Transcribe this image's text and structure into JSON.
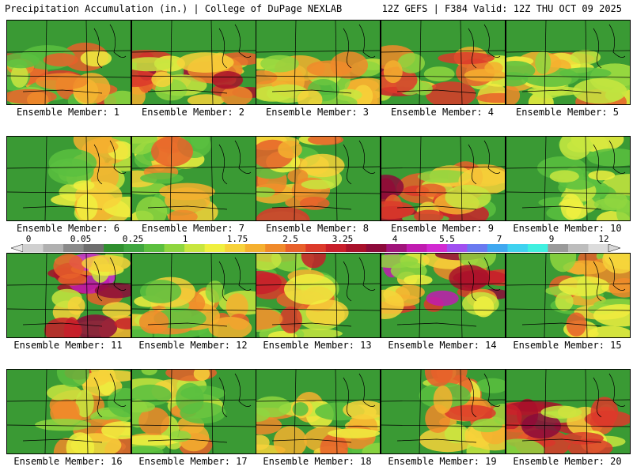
{
  "header": {
    "left_title": "Precipitation Accumulation (in.) | College of DuPage NEXLAB",
    "right_title": "12Z GEFS | F384 Valid: 12Z THU OCT 09 2025"
  },
  "colorbar": {
    "tick_labels": [
      "0",
      "0.05",
      "0.25",
      "1",
      "1.75",
      "2.5",
      "3.25",
      "4",
      "5.5",
      "7",
      "9",
      "12"
    ],
    "colors": [
      "#d0d0d0",
      "#b0b0b0",
      "#8a8a8a",
      "#6e6e6e",
      "#2f8f2f",
      "#3fa53f",
      "#5bbf3f",
      "#8fd63f",
      "#c8e63f",
      "#f0f03f",
      "#f7d23a",
      "#f5b02f",
      "#f08a2a",
      "#e8602a",
      "#dc3a2a",
      "#c81e2a",
      "#a8102a",
      "#8c0a3a",
      "#a0147a",
      "#c01cb0",
      "#d22ad2",
      "#a050f0",
      "#6a7af0",
      "#40a8f0",
      "#3fd2f0",
      "#40f0e0",
      "#9a9a9a",
      "#bdbdbd",
      "#dcdcdc"
    ]
  },
  "panels": [
    {
      "label": "Ensemble Member: 1",
      "intensity": 0.55,
      "bias": "south"
    },
    {
      "label": "Ensemble Member: 2",
      "intensity": 0.75,
      "bias": "south"
    },
    {
      "label": "Ensemble Member: 3",
      "intensity": 0.45,
      "bias": "south"
    },
    {
      "label": "Ensemble Member: 4",
      "intensity": 0.7,
      "bias": "south"
    },
    {
      "label": "Ensemble Member: 5",
      "intensity": 0.5,
      "bias": "south"
    },
    {
      "label": "Ensemble Member: 6",
      "intensity": 0.35,
      "bias": "east"
    },
    {
      "label": "Ensemble Member: 7",
      "intensity": 0.45,
      "bias": "west"
    },
    {
      "label": "Ensemble Member: 8",
      "intensity": 0.55,
      "bias": "west"
    },
    {
      "label": "Ensemble Member: 9",
      "intensity": 0.75,
      "bias": "south"
    },
    {
      "label": "Ensemble Member: 10",
      "intensity": 0.25,
      "bias": "east"
    },
    {
      "label": "Ensemble Member: 11",
      "intensity": 0.85,
      "bias": "east"
    },
    {
      "label": "Ensemble Member: 12",
      "intensity": 0.45,
      "bias": "south"
    },
    {
      "label": "Ensemble Member: 13",
      "intensity": 0.6,
      "bias": "west"
    },
    {
      "label": "Ensemble Member: 14",
      "intensity": 0.8,
      "bias": "north"
    },
    {
      "label": "Ensemble Member: 15",
      "intensity": 0.5,
      "bias": "east"
    },
    {
      "label": "Ensemble Member: 16",
      "intensity": 0.55,
      "bias": "east"
    },
    {
      "label": "Ensemble Member: 17",
      "intensity": 0.45,
      "bias": "west"
    },
    {
      "label": "Ensemble Member: 18",
      "intensity": 0.5,
      "bias": "south"
    },
    {
      "label": "Ensemble Member: 19",
      "intensity": 0.55,
      "bias": "east"
    },
    {
      "label": "Ensemble Member: 20",
      "intensity": 0.7,
      "bias": "south"
    }
  ]
}
